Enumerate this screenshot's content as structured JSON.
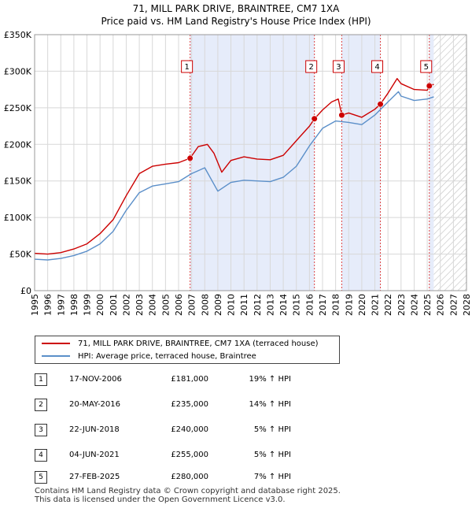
{
  "chart_data": {
    "type": "line",
    "title": "71, MILL PARK DRIVE, BRAINTREE, CM7 1XA",
    "subtitle": "Price paid vs. HM Land Registry's House Price Index (HPI)",
    "xlabel": "",
    "ylabel": "",
    "xlim": [
      1995,
      2028
    ],
    "ylim": [
      0,
      350000
    ],
    "y_ticks": [
      0,
      50000,
      100000,
      150000,
      200000,
      250000,
      300000,
      350000
    ],
    "y_tick_labels": [
      "£0",
      "£50K",
      "£100K",
      "£150K",
      "£200K",
      "£250K",
      "£300K",
      "£350K"
    ],
    "x_ticks": [
      1995,
      1996,
      1997,
      1998,
      1999,
      2000,
      2001,
      2002,
      2003,
      2004,
      2005,
      2006,
      2007,
      2008,
      2009,
      2010,
      2011,
      2012,
      2013,
      2014,
      2015,
      2016,
      2017,
      2018,
      2019,
      2020,
      2021,
      2022,
      2023,
      2024,
      2025,
      2026,
      2027,
      2028
    ],
    "shaded_regions": [
      {
        "from": 2006.88,
        "to": 2016.38
      },
      {
        "from": 2018.47,
        "to": 2021.42
      },
      {
        "from": 2025.16,
        "to": 2025.5
      }
    ],
    "forecast_hatch_from": 2025.5,
    "series": [
      {
        "name": "71, MILL PARK DRIVE, BRAINTREE, CM7 1XA (terraced house)",
        "color": "#cc0000",
        "x": [
          1995,
          1996,
          1997,
          1998,
          1999,
          2000,
          2001,
          2002,
          2003,
          2004,
          2005,
          2006,
          2006.88,
          2007.5,
          2008.2,
          2008.7,
          2009.3,
          2010,
          2011,
          2012,
          2013,
          2014,
          2015,
          2016,
          2016.38,
          2017,
          2017.7,
          2018.2,
          2018.47,
          2019,
          2020,
          2021,
          2021.42,
          2022,
          2022.7,
          2023,
          2024,
          2025,
          2025.16,
          2025.5
        ],
        "y": [
          51000,
          50000,
          52000,
          57000,
          64000,
          78000,
          97000,
          130000,
          160000,
          170000,
          173000,
          175000,
          181000,
          197000,
          200000,
          188000,
          162000,
          178000,
          183000,
          180000,
          179000,
          185000,
          205000,
          225000,
          235000,
          247000,
          258000,
          262000,
          240000,
          243000,
          237000,
          248000,
          255000,
          270000,
          290000,
          283000,
          275000,
          274000,
          280000,
          282000
        ]
      },
      {
        "name": "HPI: Average price, terraced house, Braintree",
        "color": "#5b8fc9",
        "x": [
          1995,
          1996,
          1997,
          1998,
          1999,
          2000,
          2001,
          2002,
          2003,
          2004,
          2005,
          2006,
          2007,
          2008,
          2009,
          2010,
          2011,
          2012,
          2013,
          2014,
          2015,
          2016,
          2017,
          2018,
          2019,
          2020,
          2021,
          2022,
          2022.8,
          2023,
          2024,
          2025,
          2025.5
        ],
        "y": [
          43000,
          42000,
          44000,
          48000,
          54000,
          64000,
          81000,
          110000,
          134000,
          143000,
          146000,
          149000,
          160000,
          168000,
          136000,
          148000,
          151000,
          150000,
          149000,
          155000,
          170000,
          198000,
          222000,
          232000,
          230000,
          227000,
          240000,
          258000,
          272000,
          266000,
          260000,
          262000,
          265000
        ]
      }
    ],
    "sales": [
      {
        "label": "1",
        "x": 2006.88,
        "y": 181000,
        "date": "17-NOV-2006",
        "price": "£181,000",
        "hpi": "19% ↑ HPI"
      },
      {
        "label": "2",
        "x": 2016.38,
        "y": 235000,
        "date": "20-MAY-2016",
        "price": "£235,000",
        "hpi": "14% ↑ HPI"
      },
      {
        "label": "3",
        "x": 2018.47,
        "y": 240000,
        "date": "22-JUN-2018",
        "price": "£240,000",
        "hpi": "5% ↑ HPI"
      },
      {
        "label": "4",
        "x": 2021.42,
        "y": 255000,
        "date": "04-JUN-2021",
        "price": "£255,000",
        "hpi": "5% ↑ HPI"
      },
      {
        "label": "5",
        "x": 2025.16,
        "y": 280000,
        "date": "27-FEB-2025",
        "price": "£280,000",
        "hpi": "7% ↑ HPI"
      }
    ],
    "colors": {
      "shade": "#e6ecfa",
      "vline": "#dd4444",
      "grid": "#d8d8d8"
    }
  },
  "footer": {
    "line1": "Contains HM Land Registry data © Crown copyright and database right 2025.",
    "line2": "This data is licensed under the Open Government Licence v3.0."
  }
}
